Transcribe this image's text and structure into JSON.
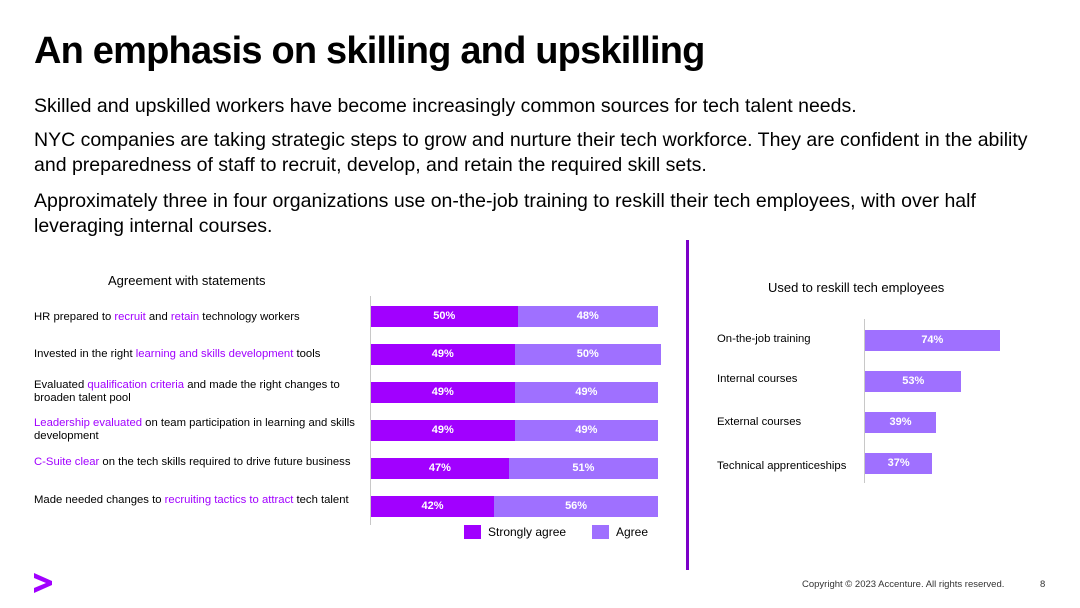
{
  "title": "An emphasis on skilling and upskilling",
  "paragraphs": [
    "Skilled and upskilled workers have become increasingly common sources for tech talent needs.",
    "NYC companies are taking strategic steps to grow and nurture their tech workforce. They are confident in the ability and preparedness of staff to recruit, develop, and retain the required skill sets.",
    "Approximately three in four organizations use on-the-job training to reskill their tech employees, with over half leveraging internal courses."
  ],
  "colors": {
    "accent": "#A100FF",
    "strongly_agree": "#A100FF",
    "agree": "#9F70FF",
    "divider": "#7B00C8"
  },
  "chart_data": [
    {
      "type": "bar",
      "orientation": "horizontal",
      "stacked": true,
      "title": "Agreement with statements",
      "categories": [
        [
          {
            "t": "HR prepared to "
          },
          {
            "t": "recruit",
            "hl": true
          },
          {
            "t": " and "
          },
          {
            "t": "retain",
            "hl": true
          },
          {
            "t": " technology workers"
          }
        ],
        [
          {
            "t": "Invested in the right "
          },
          {
            "t": "learning and skills development",
            "hl": true
          },
          {
            "t": " tools"
          }
        ],
        [
          {
            "t": "Evaluated "
          },
          {
            "t": "qualification criteria",
            "hl": true
          },
          {
            "t": " and made the right changes to broaden talent pool"
          }
        ],
        [
          {
            "t": "Leadership evaluated",
            "hl": true
          },
          {
            "t": " on team participation in learning and skills development"
          }
        ],
        [
          {
            "t": "C-Suite clear",
            "hl": true
          },
          {
            "t": " on the tech skills required to drive future business"
          }
        ],
        [
          {
            "t": "Made needed changes to "
          },
          {
            "t": "recruiting tactics to attract",
            "hl": true
          },
          {
            "t": " tech talent"
          }
        ]
      ],
      "series": [
        {
          "name": "Strongly agree",
          "values": [
            50,
            49,
            49,
            49,
            47,
            42
          ],
          "labels": [
            "50%",
            "49%",
            "49%",
            "49%",
            "47%",
            "42%"
          ]
        },
        {
          "name": "Agree",
          "values": [
            48,
            50,
            49,
            49,
            51,
            56
          ],
          "labels": [
            "48%",
            "50%",
            "49%",
            "49%",
            "51%",
            "56%"
          ]
        }
      ],
      "xlim": [
        0,
        100
      ],
      "legend": "bottom"
    },
    {
      "type": "bar",
      "orientation": "horizontal",
      "title": "Used to reskill tech employees",
      "categories": [
        "On-the-job training",
        "Internal courses",
        "External courses",
        "Technical apprenticeships"
      ],
      "values": [
        74,
        53,
        39,
        37
      ],
      "labels": [
        "74%",
        "53%",
        "39%",
        "37%"
      ],
      "xlim": [
        0,
        100
      ]
    }
  ],
  "footer": {
    "logo": "greater-than-logo",
    "copyright": "Copyright © 2023 Accenture. All rights reserved.",
    "page_number": "8"
  }
}
